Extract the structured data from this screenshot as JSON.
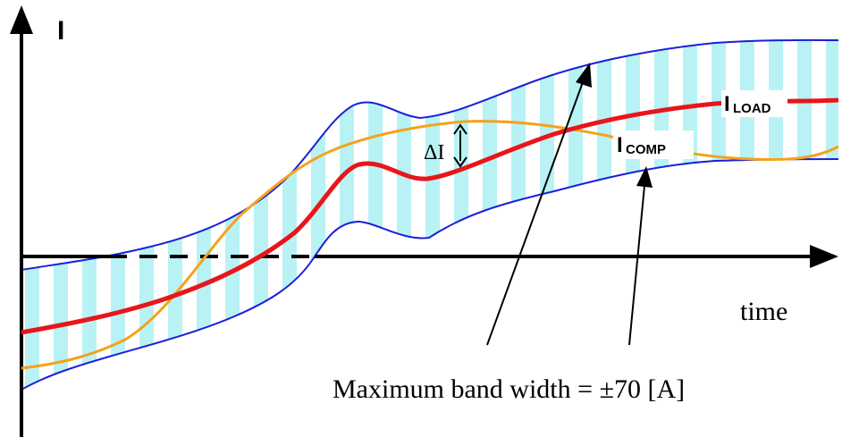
{
  "axes": {
    "y_label": "I",
    "x_label": "time"
  },
  "curves": {
    "load": {
      "label_main": "I",
      "label_sub": "LOAD",
      "color": "#e8161b"
    },
    "comp": {
      "label_main": "I",
      "label_sub": "COMP",
      "color": "#f5a21a"
    }
  },
  "band": {
    "edge_color": "#1a20d8",
    "fill_color": "#b8f2f5"
  },
  "annotations": {
    "delta_label": "ΔI",
    "band_caption": "Maximum band width = ±70 [A]"
  }
}
